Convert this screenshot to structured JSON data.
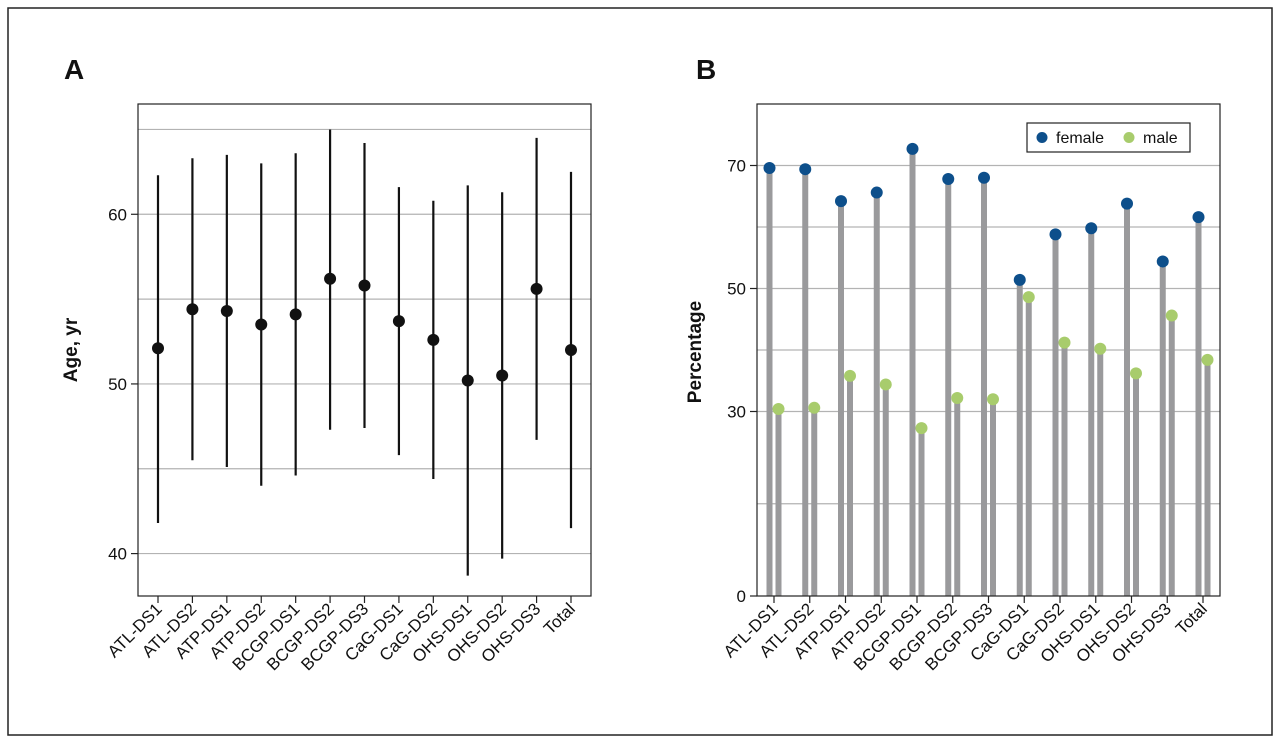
{
  "chart_data": [
    {
      "panel_label": "A",
      "type": "scatter",
      "subtype": "point-range",
      "title": "",
      "ylabel": "Age, yr",
      "xlabel": "",
      "ylim": [
        37.5,
        66.5
      ],
      "yticks": [
        40,
        50,
        60
      ],
      "ytick_labels": [
        "40",
        "50",
        "60"
      ],
      "gridlines_y": [
        40,
        45,
        50,
        55,
        60,
        65
      ],
      "grid": true,
      "categories": [
        "ATL-DS1",
        "ATL-DS2",
        "ATP-DS1",
        "ATP-DS2",
        "BCGP-DS1",
        "BCGP-DS2",
        "BCGP-DS3",
        "CaG-DS1",
        "CaG-DS2",
        "OHS-DS1",
        "OHS-DS2",
        "OHS-DS3",
        "Total"
      ],
      "series": [
        {
          "values": [
            52.1,
            54.4,
            54.3,
            53.5,
            54.1,
            56.2,
            55.8,
            53.7,
            52.6,
            50.2,
            50.5,
            55.6,
            52.0
          ],
          "lower": [
            41.8,
            45.5,
            45.1,
            44.0,
            44.6,
            47.3,
            47.4,
            45.8,
            44.4,
            38.7,
            39.7,
            46.7,
            41.5
          ],
          "upper": [
            62.3,
            63.3,
            63.5,
            63.0,
            63.6,
            65.0,
            64.2,
            61.6,
            60.8,
            61.7,
            61.3,
            64.5,
            62.5
          ],
          "color": "#111111"
        }
      ]
    },
    {
      "panel_label": "B",
      "type": "bar",
      "subtype": "lollipop",
      "title": "",
      "ylabel": "Percentage",
      "xlabel": "",
      "ylim": [
        0,
        80
      ],
      "yticks": [
        0,
        30,
        50,
        70
      ],
      "ytick_labels": [
        "0",
        "30",
        "50",
        "70"
      ],
      "gridlines_y": [
        15,
        30,
        40,
        50,
        60,
        70
      ],
      "grid": true,
      "legend_position": "top-right",
      "stem_color": "#9a9a9c",
      "categories": [
        "ATL-DS1",
        "ATL-DS2",
        "ATP-DS1",
        "ATP-DS2",
        "BCGP-DS1",
        "BCGP-DS2",
        "BCGP-DS3",
        "CaG-DS1",
        "CaG-DS2",
        "OHS-DS1",
        "OHS-DS2",
        "OHS-DS3",
        "Total"
      ],
      "series": [
        {
          "name": "female",
          "color": "#0d4f8b",
          "values": [
            69.6,
            69.4,
            64.2,
            65.6,
            72.7,
            67.8,
            68.0,
            51.4,
            58.8,
            59.8,
            63.8,
            54.4,
            61.6
          ]
        },
        {
          "name": "male",
          "color": "#a8cc6c",
          "values": [
            30.4,
            30.6,
            35.8,
            34.4,
            27.3,
            32.2,
            32.0,
            48.6,
            41.2,
            40.2,
            36.2,
            45.6,
            38.4
          ]
        }
      ]
    }
  ]
}
